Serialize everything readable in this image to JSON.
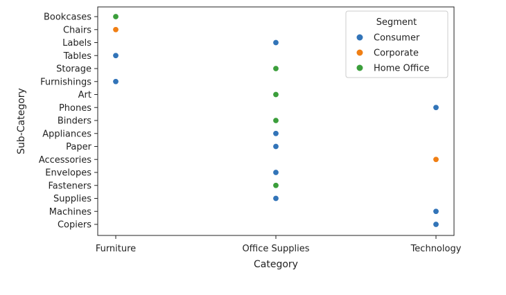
{
  "chart_data": {
    "type": "scatter",
    "title": "",
    "xlabel": "Category",
    "ylabel": "Sub-Category",
    "x_categories": [
      "Furniture",
      "Office Supplies",
      "Technology"
    ],
    "y_categories": [
      "Bookcases",
      "Chairs",
      "Labels",
      "Tables",
      "Storage",
      "Furnishings",
      "Art",
      "Phones",
      "Binders",
      "Appliances",
      "Paper",
      "Accessories",
      "Envelopes",
      "Fasteners",
      "Supplies",
      "Machines",
      "Copiers"
    ],
    "legend": {
      "title": "Segment",
      "placement": "top-right"
    },
    "grid": false,
    "series": [
      {
        "name": "Consumer",
        "color": "#3274b8",
        "points": [
          {
            "x": "Office Supplies",
            "y": "Labels"
          },
          {
            "x": "Furniture",
            "y": "Tables"
          },
          {
            "x": "Furniture",
            "y": "Furnishings"
          },
          {
            "x": "Technology",
            "y": "Phones"
          },
          {
            "x": "Office Supplies",
            "y": "Appliances"
          },
          {
            "x": "Office Supplies",
            "y": "Paper"
          },
          {
            "x": "Office Supplies",
            "y": "Envelopes"
          },
          {
            "x": "Office Supplies",
            "y": "Supplies"
          },
          {
            "x": "Technology",
            "y": "Machines"
          },
          {
            "x": "Technology",
            "y": "Copiers"
          }
        ]
      },
      {
        "name": "Corporate",
        "color": "#f07f14",
        "points": [
          {
            "x": "Furniture",
            "y": "Chairs"
          },
          {
            "x": "Technology",
            "y": "Accessories"
          }
        ]
      },
      {
        "name": "Home Office",
        "color": "#3b9e3b",
        "points": [
          {
            "x": "Furniture",
            "y": "Bookcases"
          },
          {
            "x": "Office Supplies",
            "y": "Storage"
          },
          {
            "x": "Office Supplies",
            "y": "Art"
          },
          {
            "x": "Office Supplies",
            "y": "Binders"
          },
          {
            "x": "Office Supplies",
            "y": "Fasteners"
          }
        ]
      }
    ]
  }
}
